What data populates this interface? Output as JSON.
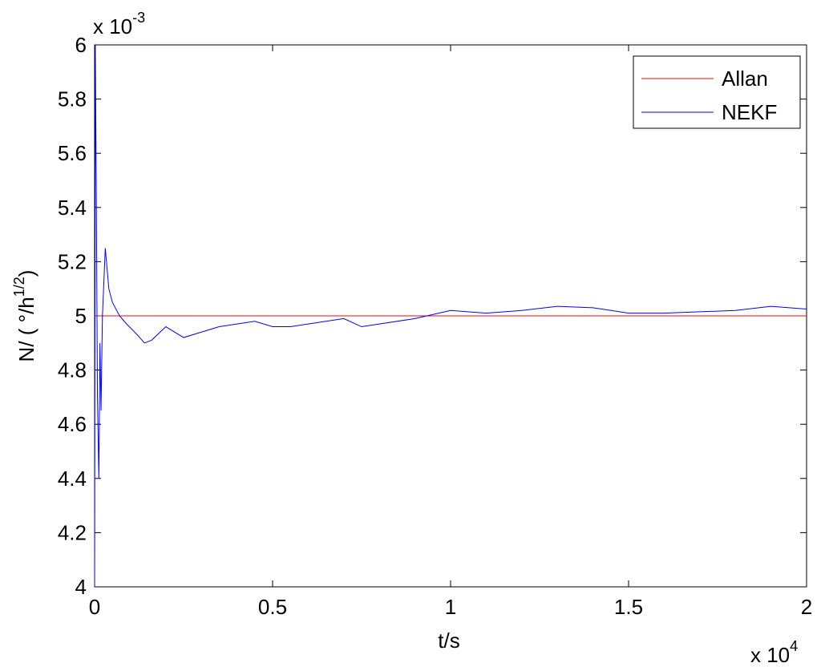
{
  "chart_data": {
    "type": "line",
    "xlabel": "t/s",
    "ylabel": {
      "text": "N/ ( °/h",
      "sup": "1/2",
      "end": ")"
    },
    "x_multiplier": {
      "base": "x 10",
      "exponent": "4"
    },
    "y_multiplier": {
      "base": "x 10",
      "exponent": "-3"
    },
    "x": [
      0,
      0.002,
      0.005,
      0.008,
      0.012,
      0.015,
      0.018,
      0.022,
      0.03,
      0.04,
      0.05,
      0.07,
      0.09,
      0.12,
      0.14,
      0.16,
      0.2,
      0.25,
      0.3,
      0.35,
      0.4,
      0.45,
      0.5,
      0.55,
      0.6,
      0.7,
      0.75,
      0.8,
      0.9,
      1.0,
      1.1,
      1.2,
      1.3,
      1.4,
      1.5,
      1.6,
      1.7,
      1.8,
      1.9,
      2.0
    ],
    "series": [
      {
        "name": "Allan",
        "color": "#ff0000",
        "values": [
          5,
          5,
          5,
          5,
          5,
          5,
          5,
          5,
          5,
          5,
          5,
          5,
          5,
          5,
          5,
          5,
          5,
          5,
          5,
          5,
          5,
          5,
          5,
          5,
          5,
          5,
          5,
          5,
          5,
          5,
          5,
          5,
          5,
          5,
          5,
          5,
          5,
          5,
          5,
          5
        ]
      },
      {
        "name": "NEKF",
        "color": "#0000ff",
        "values": [
          4.0,
          6.0,
          5.4,
          4.7,
          4.4,
          4.9,
          4.65,
          5.0,
          5.25,
          5.1,
          5.05,
          5.0,
          4.97,
          4.93,
          4.9,
          4.91,
          4.96,
          4.92,
          4.94,
          4.96,
          4.97,
          4.98,
          4.96,
          4.96,
          4.97,
          4.99,
          4.96,
          4.97,
          4.99,
          5.02,
          5.01,
          5.02,
          5.035,
          5.03,
          5.01,
          5.01,
          5.015,
          5.02,
          5.035,
          5.025
        ]
      }
    ],
    "xlim": [
      0,
      2
    ],
    "xticks": [
      0,
      0.5,
      1,
      1.5,
      2
    ],
    "ylim": [
      4,
      6
    ],
    "yticks": [
      4,
      4.2,
      4.4,
      4.6,
      4.8,
      5,
      5.2,
      5.4,
      5.6,
      5.8,
      6
    ],
    "grid": false,
    "legend": "top-right"
  }
}
